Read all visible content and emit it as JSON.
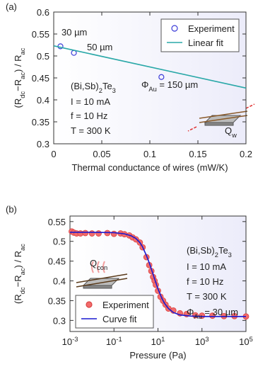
{
  "chart_data": [
    {
      "type": "scatter",
      "panel_label": "(a)",
      "xlabel": "Thermal conductance of wires  (mW/K)",
      "ylabel": [
        "(R",
        "dc",
        "−R",
        "ac",
        ") / R",
        "ac"
      ],
      "xlim": [
        0,
        0.2
      ],
      "xticks": [
        0,
        0.05,
        0.1,
        0.15,
        0.2
      ],
      "ylim": [
        0.3,
        0.6
      ],
      "yticks": [
        0.3,
        0.35,
        0.4,
        0.45,
        0.5,
        0.55,
        0.6
      ],
      "xscale": "linear",
      "grid": false,
      "legend": "upper right",
      "series": [
        {
          "name": "Experiment",
          "style": "open-marker",
          "color": "#3b3bd8",
          "x": [
            0.007,
            0.021,
            0.112
          ],
          "values": [
            0.522,
            0.507,
            0.452
          ]
        },
        {
          "name": "Linear fit",
          "style": "line",
          "color": "#2aa8a8",
          "x": [
            0,
            0.2
          ],
          "values": [
            0.523,
            0.427
          ]
        }
      ],
      "annotations": [
        "30 µm",
        "50 µm",
        [
          "Φ",
          "Au",
          " = 150 µm"
        ],
        [
          "(Bi,Sb)",
          "2",
          "Te",
          "3"
        ],
        "I = 10 mA",
        "f = 10 Hz",
        "T = 300 K",
        [
          "Q",
          "w"
        ]
      ]
    },
    {
      "type": "scatter",
      "panel_label": "(b)",
      "xlabel": "Pressure (Pa)",
      "ylabel": [
        "(R",
        "dc",
        "−R",
        "ac",
        ") / R",
        "ac"
      ],
      "xlim": [
        0.001,
        100000
      ],
      "xticks": [
        {
          "value": 0.001,
          "label": [
            "10",
            "-3"
          ]
        },
        {
          "value": 0.1,
          "label": [
            "10",
            "-1"
          ]
        },
        {
          "value": 10,
          "label": [
            "10",
            "1"
          ]
        },
        {
          "value": 1000,
          "label": [
            "10",
            "3"
          ]
        },
        {
          "value": 100000,
          "label": [
            "10",
            "5"
          ]
        }
      ],
      "ylim": [
        0.272,
        0.564
      ],
      "yticks": [
        0.3,
        0.35,
        0.4,
        0.45,
        0.5,
        0.55
      ],
      "xscale": "log",
      "grid": false,
      "legend": "lower left",
      "series": [
        {
          "name": "Experiment",
          "style": "filled-marker",
          "color": "#f26b6b",
          "x": [
            0.0012,
            0.0015,
            0.002,
            0.003,
            0.005,
            0.01,
            0.02,
            0.05,
            0.1,
            0.2,
            0.3,
            0.5,
            0.7,
            1,
            1.5,
            2,
            3,
            4,
            5,
            6,
            7,
            8,
            10,
            13,
            17,
            22,
            30,
            50,
            100,
            200,
            500,
            1000,
            3000,
            10000,
            30000,
            100000
          ],
          "values": [
            0.525,
            0.522,
            0.52,
            0.52,
            0.521,
            0.52,
            0.52,
            0.521,
            0.519,
            0.52,
            0.518,
            0.515,
            0.51,
            0.505,
            0.497,
            0.485,
            0.46,
            0.44,
            0.425,
            0.41,
            0.4,
            0.39,
            0.375,
            0.36,
            0.35,
            0.34,
            0.33,
            0.325,
            0.318,
            0.316,
            0.313,
            0.312,
            0.312,
            0.311,
            0.311,
            0.31
          ]
        },
        {
          "name": "Curve fit",
          "style": "line",
          "color": "#1a1ad0",
          "x": [
            0.001,
            0.01,
            0.1,
            0.3,
            0.6,
            1,
            1.5,
            2,
            3,
            4,
            5,
            6,
            7,
            10,
            15,
            20,
            30,
            50,
            100,
            300,
            1000,
            10000,
            100000
          ],
          "values": [
            0.523,
            0.523,
            0.522,
            0.519,
            0.514,
            0.507,
            0.497,
            0.486,
            0.464,
            0.446,
            0.43,
            0.417,
            0.405,
            0.38,
            0.356,
            0.343,
            0.33,
            0.32,
            0.314,
            0.311,
            0.31,
            0.31,
            0.31
          ]
        }
      ],
      "annotations": [
        [
          "(Bi,Sb)",
          "2",
          "Te",
          "3"
        ],
        "I = 10 mA",
        "f = 10 Hz",
        "T = 300 K",
        [
          "Φ",
          "Au",
          " = 30 µm"
        ],
        [
          "Q",
          "con"
        ]
      ]
    }
  ]
}
